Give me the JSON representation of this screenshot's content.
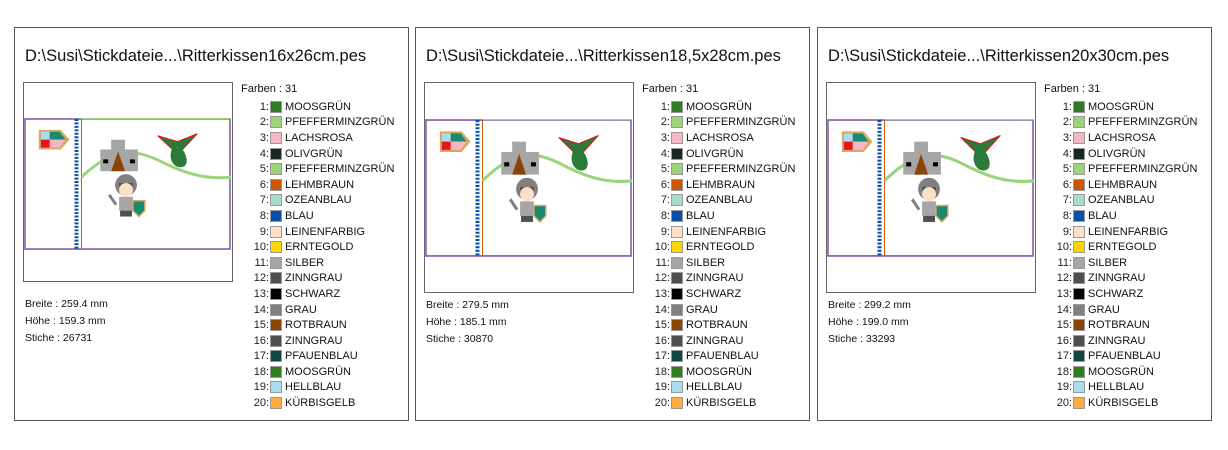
{
  "colors_label": "Farben : 31",
  "palette": [
    {
      "num": "1:",
      "name": "MOOSGRÜN",
      "hex": "#2e7d24"
    },
    {
      "num": "2:",
      "name": "PFEFFERMINZGRÜN",
      "hex": "#9bd47c"
    },
    {
      "num": "3:",
      "name": "LACHSROSA",
      "hex": "#f7b6c4"
    },
    {
      "num": "4:",
      "name": "OLIVGRÜN",
      "hex": "#16291c"
    },
    {
      "num": "5:",
      "name": "PFEFFERMINZGRÜN",
      "hex": "#9bd47c"
    },
    {
      "num": "6:",
      "name": "LEHMBRAUN",
      "hex": "#cc5500"
    },
    {
      "num": "7:",
      "name": "OZEANBLAU",
      "hex": "#a8dcc4"
    },
    {
      "num": "8:",
      "name": "BLAU",
      "hex": "#0a4fa8"
    },
    {
      "num": "9:",
      "name": "LEINENFARBIG",
      "hex": "#fde0c6"
    },
    {
      "num": "10:",
      "name": "ERNTEGOLD",
      "hex": "#ffd400"
    },
    {
      "num": "11:",
      "name": "SILBER",
      "hex": "#a6a6a6"
    },
    {
      "num": "12:",
      "name": "ZINNGRAU",
      "hex": "#4b5051"
    },
    {
      "num": "13:",
      "name": "SCHWARZ",
      "hex": "#000000"
    },
    {
      "num": "14:",
      "name": "GRAU",
      "hex": "#808080"
    },
    {
      "num": "15:",
      "name": "ROTBRAUN",
      "hex": "#8a4506"
    },
    {
      "num": "16:",
      "name": "ZINNGRAU",
      "hex": "#4b5051"
    },
    {
      "num": "17:",
      "name": "PFAUENBLAU",
      "hex": "#12473f"
    },
    {
      "num": "18:",
      "name": "MOOSGRÜN",
      "hex": "#2e7d24"
    },
    {
      "num": "19:",
      "name": "HELLBLAU",
      "hex": "#a9dcec"
    },
    {
      "num": "20:",
      "name": "KÜRBISGELB",
      "hex": "#ffad3b"
    }
  ],
  "files": [
    {
      "title": "D:\\Susi\\Stickdateie...\\Ritterkissen16x26cm.pes",
      "width": "Breite : 259.4 mm",
      "height": "Höhe : 159.3 mm",
      "stitches": "Stiche : 26731"
    },
    {
      "title": "D:\\Susi\\Stickdateie...\\Ritterkissen18,5x28cm.pes",
      "width": "Breite : 279.5 mm",
      "height": "Höhe : 185.1 mm",
      "stitches": "Stiche : 30870"
    },
    {
      "title": "D:\\Susi\\Stickdateie...\\Ritterkissen20x30cm.pes",
      "width": "Breite : 299.2 mm",
      "height": "Höhe : 199.0 mm",
      "stitches": "Stiche : 33293"
    }
  ]
}
